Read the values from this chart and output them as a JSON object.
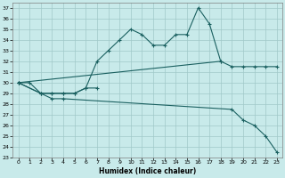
{
  "xlabel": "Humidex (Indice chaleur)",
  "bg_color": "#c8eaea",
  "grid_color": "#a0c8c8",
  "line_color": "#1a6060",
  "xlim": [
    -0.5,
    23.5
  ],
  "ylim": [
    23,
    37.5
  ],
  "yticks": [
    23,
    24,
    25,
    26,
    27,
    28,
    29,
    30,
    31,
    32,
    33,
    34,
    35,
    36,
    37
  ],
  "xticks": [
    0,
    1,
    2,
    3,
    4,
    5,
    6,
    7,
    8,
    9,
    10,
    11,
    12,
    13,
    14,
    15,
    16,
    17,
    18,
    19,
    20,
    21,
    22,
    23
  ],
  "line1_x": [
    0,
    1,
    2,
    3,
    4,
    5,
    6,
    7,
    8,
    9,
    10,
    11,
    12,
    13,
    14,
    15,
    16,
    17,
    18
  ],
  "line1_y": [
    30.0,
    30.0,
    29.0,
    29.0,
    29.0,
    29.0,
    29.5,
    32.0,
    33.0,
    34.0,
    35.0,
    34.5,
    33.5,
    33.5,
    34.5,
    34.5,
    37.0,
    35.5,
    32.0
  ],
  "line2_x": [
    0,
    2,
    3,
    4,
    5,
    6,
    7
  ],
  "line2_y": [
    30.0,
    29.0,
    29.0,
    29.0,
    29.0,
    29.5,
    29.5
  ],
  "line3_x": [
    0,
    18,
    19,
    20,
    21,
    22,
    23
  ],
  "line3_y": [
    30.0,
    32.0,
    31.5,
    31.5,
    31.5,
    31.5,
    31.5
  ],
  "line4_x": [
    0,
    2,
    3,
    4,
    19,
    20,
    21,
    22,
    23
  ],
  "line4_y": [
    30.0,
    29.0,
    28.5,
    28.5,
    27.5,
    26.5,
    26.0,
    25.0,
    23.5
  ]
}
